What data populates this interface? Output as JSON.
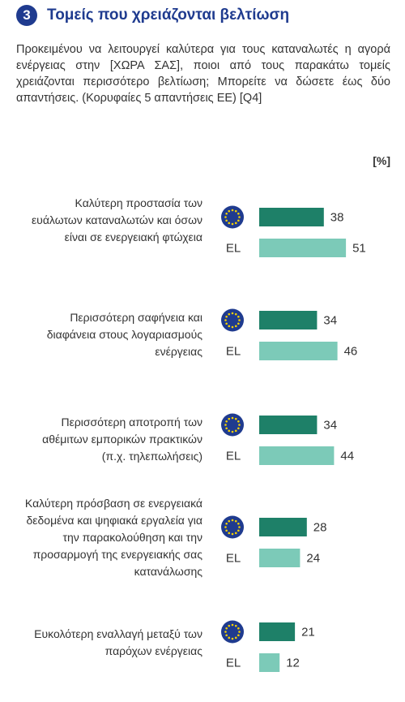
{
  "header": {
    "number": "3",
    "title": "Τομείς που χρειάζονται βελτίωση"
  },
  "description": "Προκειμένου να λειτουργεί καλύτερα για τους καταναλωτές η αγορά ενέργειας στην [ΧΩΡΑ ΣΑΣ], ποιοι από τους παρακάτω τομείς χρειάζονται περισσότερο βελτίωση; Μπορείτε να δώσετε έως δύο απαντήσεις. (Κορυφαίες 5 απαντήσεις ΕΕ) [Q4]",
  "unit": "[%]",
  "colors": {
    "eu_bar": "#1e8068",
    "el_bar": "#7ccab8",
    "eu_flag": "#1f3b8f",
    "eu_star": "#f5d100",
    "title": "#1f3b8f"
  },
  "chart_data": {
    "type": "bar",
    "orientation": "horizontal",
    "categories": [
      "Καλύτερη προστασία των ευάλωτων καταναλωτών και όσων είναι σε ενεργειακή φτώχεια",
      "Περισσότερη σαφήνεια και διαφάνεια στους λογαριασμούς ενέργειας",
      "Περισσότερη αποτροπή των αθέμιτων εμπορικών πρακτικών (π.χ. τηλεπωλήσεις)",
      "Καλύτερη πρόσβαση σε ενεργειακά δεδομένα και ψηφιακά εργαλεία για την παρακολούθηση και την προσαρμογή της ενεργειακής σας κατανάλωσης",
      "Ευκολότερη εναλλαγή μεταξύ των παρόχων ενέργειας"
    ],
    "series": [
      {
        "marker": "eu-flag-icon",
        "values": [
          38,
          34,
          34,
          28,
          21
        ]
      },
      {
        "name": "EL",
        "values": [
          51,
          46,
          44,
          24,
          12
        ]
      }
    ],
    "unit": "[%]",
    "xlim": [
      0,
      100
    ],
    "grid": false
  }
}
